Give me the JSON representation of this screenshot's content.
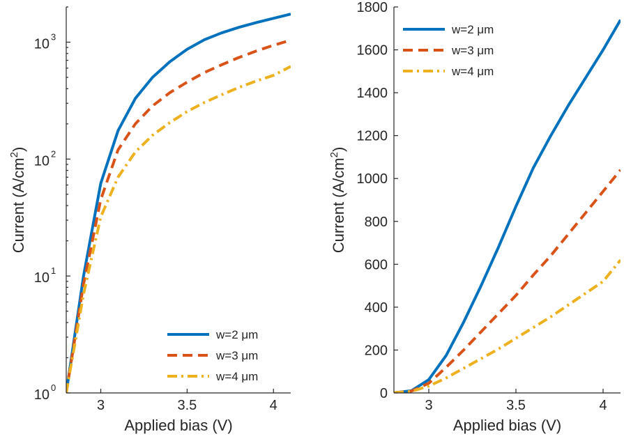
{
  "chart_data": [
    {
      "type": "line",
      "yscale": "log",
      "xlabel": "Applied bias (V)",
      "ylabel": "Current (A/cm2)",
      "ylabel_parts": {
        "main": "Current (A/cm",
        "sup": "2",
        "close": ")"
      },
      "xlim": [
        2.8,
        4.1
      ],
      "ylim": [
        1,
        2000
      ],
      "xticks": [
        3,
        3.5,
        4
      ],
      "xtick_labels": [
        "3",
        "3.5",
        "4"
      ],
      "yticks": [
        1,
        10,
        100,
        1000
      ],
      "ytick_labels": [
        {
          "base": "10",
          "exp": "0"
        },
        {
          "base": "10",
          "exp": "1"
        },
        {
          "base": "10",
          "exp": "2"
        },
        {
          "base": "10",
          "exp": "3"
        }
      ],
      "legend_position": "bottom-right",
      "grid": false,
      "series": [
        {
          "name": "w=2 μm",
          "color": "#0072BD",
          "style": "solid",
          "x": [
            2.8,
            2.9,
            3.0,
            3.1,
            3.2,
            3.3,
            3.4,
            3.5,
            3.6,
            3.7,
            3.8,
            3.9,
            4.0,
            4.1
          ],
          "y": [
            1.0,
            10,
            62,
            175,
            330,
            500,
            680,
            870,
            1050,
            1200,
            1340,
            1470,
            1600,
            1740
          ]
        },
        {
          "name": "w=3 μm",
          "color": "#D95319",
          "style": "dashed",
          "x": [
            2.8,
            2.9,
            3.0,
            3.1,
            3.2,
            3.3,
            3.4,
            3.5,
            3.6,
            3.7,
            3.8,
            3.9,
            4.0,
            4.1
          ],
          "y": [
            1.0,
            8.5,
            45,
            120,
            200,
            285,
            370,
            455,
            550,
            640,
            740,
            840,
            940,
            1040
          ]
        },
        {
          "name": "w=4 μm",
          "color": "#EDB120",
          "style": "dashdot",
          "x": [
            2.8,
            2.9,
            3.0,
            3.1,
            3.2,
            3.3,
            3.4,
            3.5,
            3.6,
            3.7,
            3.8,
            3.9,
            4.0,
            4.1
          ],
          "y": [
            1.0,
            7,
            32,
            70,
            115,
            160,
            205,
            255,
            305,
            355,
            410,
            465,
            520,
            620
          ]
        }
      ]
    },
    {
      "type": "line",
      "yscale": "linear",
      "xlabel": "Applied bias (V)",
      "ylabel": "Current (A/cm2)",
      "ylabel_parts": {
        "main": "Current (A/cm",
        "sup": "2",
        "close": ")"
      },
      "xlim": [
        2.8,
        4.1
      ],
      "ylim": [
        0,
        1800
      ],
      "xticks": [
        3,
        3.5,
        4
      ],
      "xtick_labels": [
        "3",
        "3.5",
        "4"
      ],
      "yticks": [
        0,
        200,
        400,
        600,
        800,
        1000,
        1200,
        1400,
        1600,
        1800
      ],
      "ytick_labels": [
        "0",
        "200",
        "400",
        "600",
        "800",
        "1000",
        "1200",
        "1400",
        "1600",
        "1800"
      ],
      "legend_position": "top-left",
      "grid": false,
      "series": [
        {
          "name": "w=2 μm",
          "color": "#0072BD",
          "style": "solid",
          "x": [
            2.8,
            2.9,
            3.0,
            3.1,
            3.2,
            3.3,
            3.4,
            3.5,
            3.6,
            3.7,
            3.8,
            3.9,
            4.0,
            4.1
          ],
          "y": [
            1.0,
            10,
            62,
            175,
            330,
            500,
            680,
            870,
            1050,
            1200,
            1340,
            1470,
            1600,
            1740
          ]
        },
        {
          "name": "w=3 μm",
          "color": "#D95319",
          "style": "dashed",
          "x": [
            2.8,
            2.9,
            3.0,
            3.1,
            3.2,
            3.3,
            3.4,
            3.5,
            3.6,
            3.7,
            3.8,
            3.9,
            4.0,
            4.1
          ],
          "y": [
            1.0,
            8.5,
            45,
            120,
            200,
            285,
            370,
            455,
            550,
            640,
            740,
            840,
            940,
            1040
          ]
        },
        {
          "name": "w=4 μm",
          "color": "#EDB120",
          "style": "dashdot",
          "x": [
            2.8,
            2.9,
            3.0,
            3.1,
            3.2,
            3.3,
            3.4,
            3.5,
            3.6,
            3.7,
            3.8,
            3.9,
            4.0,
            4.1
          ],
          "y": [
            1.0,
            7,
            32,
            70,
            115,
            160,
            205,
            255,
            305,
            355,
            410,
            465,
            520,
            620
          ]
        }
      ]
    }
  ]
}
